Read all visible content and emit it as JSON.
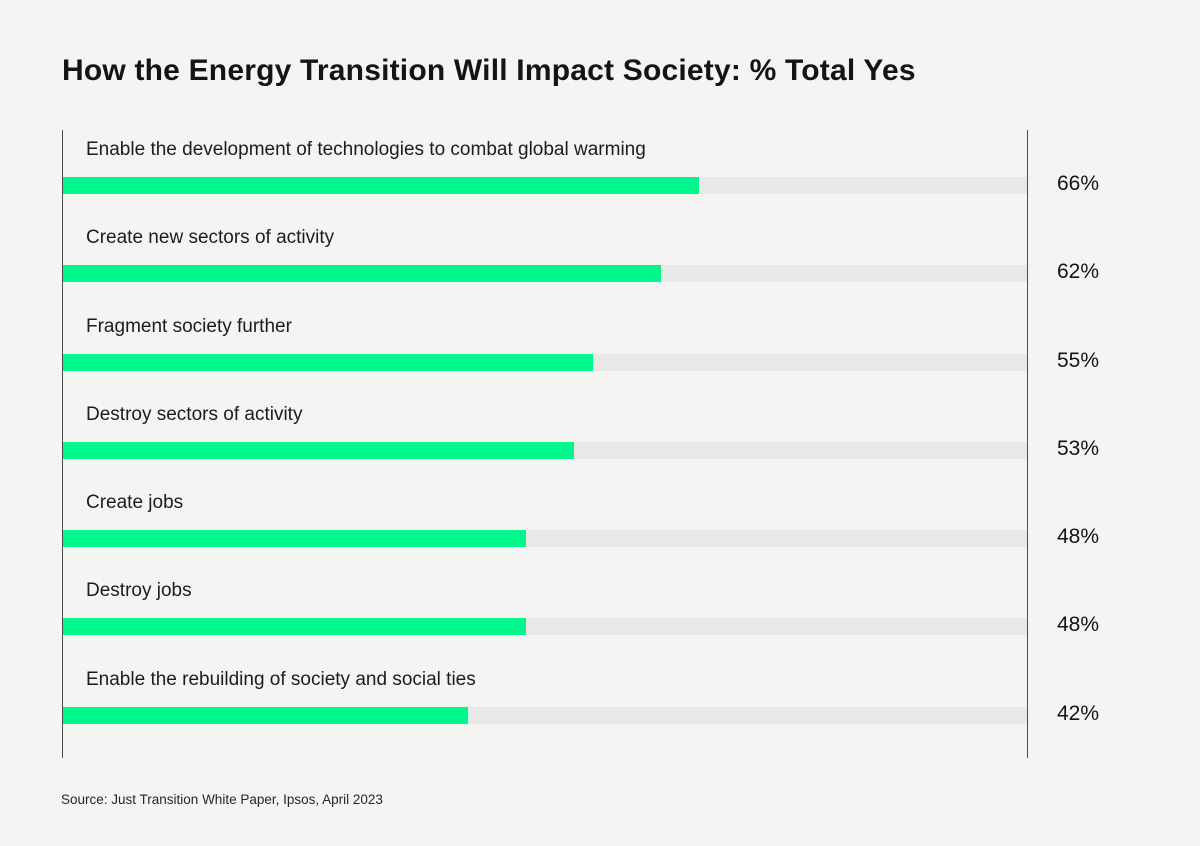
{
  "page": {
    "title": "How the Energy Transition Will Impact Society: % Total Yes",
    "source": "Source: Just Transition White Paper, Ipsos, April 2023"
  },
  "colors": {
    "background": "#F4F4F2",
    "bar_fill": "#00F78C",
    "bar_track": "#E8E8E6",
    "axis_line": "#4D4D4D",
    "title_text": "#141414",
    "label_text": "#1C1C1C"
  },
  "chart_data": {
    "type": "bar",
    "orientation": "horizontal",
    "title": "How the Energy Transition Will Impact Society: % Total Yes",
    "categories": [
      "Enable the development of technologies to combat global warming",
      "Create new sectors of activity",
      "Fragment society further",
      "Destroy sectors of activity",
      "Create jobs",
      "Destroy jobs",
      "Enable the rebuilding of society and social ties"
    ],
    "values": [
      66,
      62,
      55,
      53,
      48,
      48,
      42
    ],
    "value_labels": [
      "66%",
      "62%",
      "55%",
      "53%",
      "48%",
      "48%",
      "42%"
    ],
    "xlim": [
      0,
      100
    ],
    "grid": false,
    "legend": false,
    "value_label_position": "right-outside",
    "source": "Source: Just Transition White Paper, Ipsos, April 2023"
  }
}
